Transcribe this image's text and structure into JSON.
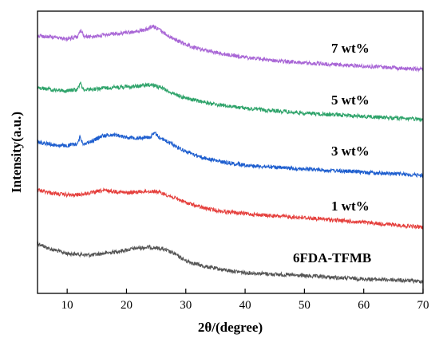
{
  "chart_data": {
    "type": "line",
    "title": "",
    "xlabel": "2θ/(degree)",
    "ylabel": "Intensity(a.u.)",
    "xlim": [
      5,
      70
    ],
    "y_ticks_shown": false,
    "x_ticks": [
      10,
      20,
      30,
      40,
      50,
      60,
      70
    ],
    "x_tick_labels": [
      "10",
      "20",
      "30",
      "40",
      "50",
      "60",
      "70"
    ],
    "grid": false,
    "legend": "none; series are labelled inline to the right of each trace",
    "series": [
      {
        "name": "6FDA-TFMB",
        "color": "#555555",
        "noise": 2.4,
        "points": [
          [
            5,
            305
          ],
          [
            7,
            312
          ],
          [
            10,
            318
          ],
          [
            14,
            320
          ],
          [
            18,
            316
          ],
          [
            22,
            311
          ],
          [
            24,
            310
          ],
          [
            26,
            312
          ],
          [
            28,
            318
          ],
          [
            30,
            327
          ],
          [
            33,
            334
          ],
          [
            36,
            338
          ],
          [
            40,
            342
          ],
          [
            45,
            344
          ],
          [
            50,
            346
          ],
          [
            55,
            348
          ],
          [
            60,
            350
          ],
          [
            65,
            351
          ],
          [
            70,
            353
          ]
        ]
      },
      {
        "name": "1 wt%",
        "color": "#e5403d",
        "noise": 2.4,
        "points": [
          [
            5,
            238
          ],
          [
            8,
            243
          ],
          [
            11,
            245
          ],
          [
            14,
            242
          ],
          [
            16,
            239
          ],
          [
            18,
            240
          ],
          [
            20,
            242
          ],
          [
            23,
            240
          ],
          [
            25,
            240
          ],
          [
            27,
            245
          ],
          [
            30,
            254
          ],
          [
            33,
            261
          ],
          [
            36,
            265
          ],
          [
            40,
            268
          ],
          [
            45,
            271
          ],
          [
            50,
            273
          ],
          [
            55,
            276
          ],
          [
            60,
            279
          ],
          [
            65,
            282
          ],
          [
            70,
            285
          ]
        ]
      },
      {
        "name": "3 wt%",
        "color": "#1f5fcf",
        "noise": 2.4,
        "points": [
          [
            5,
            178
          ],
          [
            8,
            182
          ],
          [
            10,
            183
          ],
          [
            11.8,
            180
          ],
          [
            12.2,
            171
          ],
          [
            12.6,
            180
          ],
          [
            14,
            178
          ],
          [
            16,
            170
          ],
          [
            18,
            169
          ],
          [
            20,
            172
          ],
          [
            22,
            173
          ],
          [
            24,
            172
          ],
          [
            24.8,
            167
          ],
          [
            25.5,
            172
          ],
          [
            27,
            178
          ],
          [
            30,
            190
          ],
          [
            33,
            198
          ],
          [
            36,
            203
          ],
          [
            40,
            207
          ],
          [
            45,
            210
          ],
          [
            50,
            212
          ],
          [
            55,
            214
          ],
          [
            60,
            216
          ],
          [
            65,
            218
          ],
          [
            70,
            220
          ]
        ]
      },
      {
        "name": "5 wt%",
        "color": "#2ea36a",
        "noise": 2.4,
        "points": [
          [
            5,
            110
          ],
          [
            8,
            113
          ],
          [
            10,
            114
          ],
          [
            11.8,
            112
          ],
          [
            12.2,
            103
          ],
          [
            12.6,
            112
          ],
          [
            14,
            112
          ],
          [
            17,
            110
          ],
          [
            20,
            109
          ],
          [
            22,
            108
          ],
          [
            24,
            106
          ],
          [
            26,
            110
          ],
          [
            28,
            118
          ],
          [
            31,
            125
          ],
          [
            35,
            131
          ],
          [
            40,
            136
          ],
          [
            45,
            139
          ],
          [
            50,
            142
          ],
          [
            55,
            144
          ],
          [
            60,
            146
          ],
          [
            65,
            148
          ],
          [
            70,
            150
          ]
        ]
      },
      {
        "name": "7 wt%",
        "color": "#a967d6",
        "noise": 2.4,
        "points": [
          [
            5,
            45
          ],
          [
            8,
            47
          ],
          [
            10,
            49
          ],
          [
            11.8,
            46
          ],
          [
            12.3,
            37
          ],
          [
            12.8,
            46
          ],
          [
            14,
            46
          ],
          [
            17,
            43
          ],
          [
            20,
            41
          ],
          [
            23,
            38
          ],
          [
            24.5,
            33
          ],
          [
            25.5,
            37
          ],
          [
            27,
            45
          ],
          [
            30,
            56
          ],
          [
            33,
            63
          ],
          [
            36,
            67
          ],
          [
            40,
            72
          ],
          [
            45,
            76
          ],
          [
            50,
            79
          ],
          [
            55,
            81
          ],
          [
            60,
            83
          ],
          [
            65,
            85
          ],
          [
            70,
            87
          ]
        ]
      }
    ],
    "annotations": [
      "7 wt%",
      "5 wt%",
      "3 wt%",
      "1 wt%",
      "6FDA-TFMB"
    ]
  }
}
